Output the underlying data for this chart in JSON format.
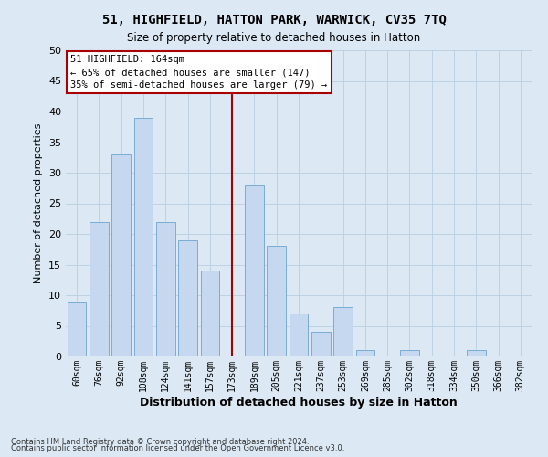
{
  "title": "51, HIGHFIELD, HATTON PARK, WARWICK, CV35 7TQ",
  "subtitle": "Size of property relative to detached houses in Hatton",
  "xlabel": "Distribution of detached houses by size in Hatton",
  "ylabel": "Number of detached properties",
  "bar_labels": [
    "60sqm",
    "76sqm",
    "92sqm",
    "108sqm",
    "124sqm",
    "141sqm",
    "157sqm",
    "173sqm",
    "189sqm",
    "205sqm",
    "221sqm",
    "237sqm",
    "253sqm",
    "269sqm",
    "285sqm",
    "302sqm",
    "318sqm",
    "334sqm",
    "350sqm",
    "366sqm",
    "382sqm"
  ],
  "bar_values": [
    9,
    22,
    33,
    39,
    22,
    19,
    14,
    0,
    28,
    18,
    7,
    4,
    8,
    1,
    0,
    1,
    0,
    0,
    1,
    0,
    0
  ],
  "bar_color": "#c5d8ef",
  "bar_edge_color": "#7aadd4",
  "vline_x_index": 7,
  "vline_color": "#aa0000",
  "annotation_text": "51 HIGHFIELD: 164sqm\n← 65% of detached houses are smaller (147)\n35% of semi-detached houses are larger (79) →",
  "annotation_box_color": "#ffffff",
  "annotation_box_edge": "#aa0000",
  "ylim": [
    0,
    50
  ],
  "yticks": [
    0,
    5,
    10,
    15,
    20,
    25,
    30,
    35,
    40,
    45,
    50
  ],
  "grid_color": "#b8cfe0",
  "background_color": "#dce9f5",
  "footer1": "Contains HM Land Registry data © Crown copyright and database right 2024.",
  "footer2": "Contains public sector information licensed under the Open Government Licence v3.0."
}
